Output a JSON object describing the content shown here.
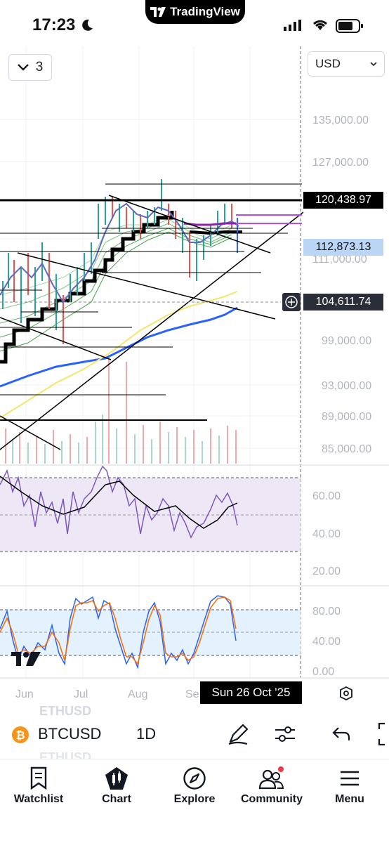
{
  "status": {
    "time": "17:23",
    "pill_app": "TradingView"
  },
  "toolbar": {
    "interval_count": "3",
    "currency": "USD"
  },
  "price_axis": {
    "ticks": [
      "135,000.00",
      "127,000.00",
      "111,000.00",
      "99,000.00",
      "93,000.00",
      "89,000.00",
      "85,000.00"
    ],
    "tags": {
      "resistance": "120,438.97",
      "current": "112,873.13",
      "crosshair": "104,611.74"
    }
  },
  "rsi_axis": {
    "ticks": [
      "60.00",
      "40.00",
      "20.00"
    ]
  },
  "stoch_axis": {
    "ticks": [
      "80.00",
      "40.00",
      "0.00"
    ]
  },
  "time_axis": {
    "ticks": [
      "Jun",
      "Jul",
      "Aug",
      "Se"
    ],
    "crosshair_date": "Sun 26 Oct '25"
  },
  "symbol_bar": {
    "symbol": "BTCUSD",
    "interval": "1D",
    "ghost_above": "ETHUSD",
    "ghost_below": "ETHUSD"
  },
  "nav": {
    "watchlist": "Watchlist",
    "chart": "Chart",
    "explore": "Explore",
    "community": "Community",
    "menu": "Menu"
  },
  "colors": {
    "accent_blue": "#2962ff",
    "yellow_ma": "#f5e56b",
    "rsi_purple": "#7e57c2",
    "bitcoin": "#f7931a",
    "current_tag": "#bbd5f5"
  }
}
